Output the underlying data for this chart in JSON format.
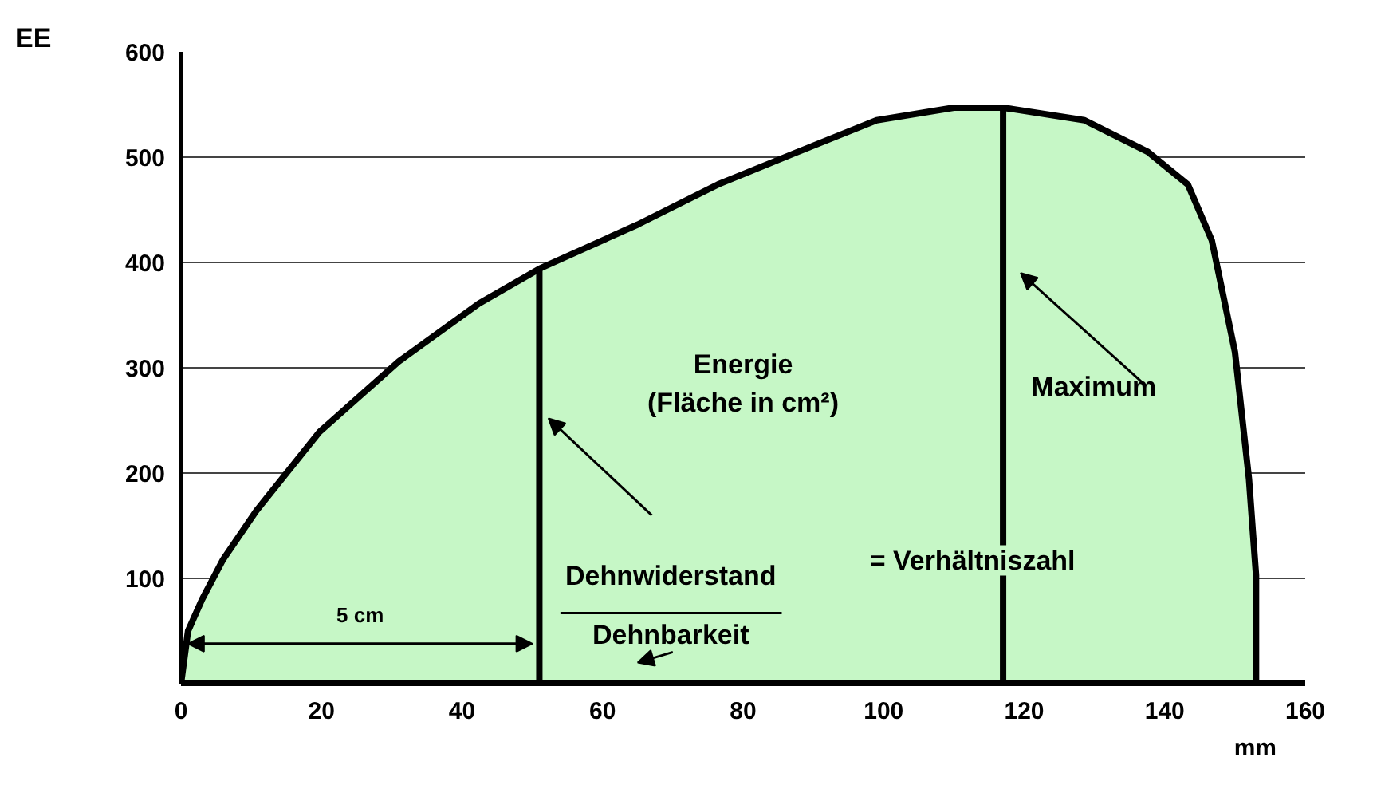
{
  "chart_data": {
    "type": "area",
    "xlabel": "mm",
    "ylabel": "EE",
    "xlim": [
      0,
      160
    ],
    "ylim": [
      0,
      600
    ],
    "xticks": [
      0,
      20,
      40,
      60,
      80,
      100,
      120,
      140,
      160
    ],
    "yticks": [
      {
        "value": 0,
        "label": null
      },
      100,
      200,
      300,
      400,
      500,
      600
    ],
    "grid": "y",
    "series": [
      {
        "color": "#c6f7c6",
        "x": [
          0,
          1,
          3,
          6,
          10.7,
          19.7,
          31,
          42.4,
          51,
          65,
          76.4,
          87.8,
          99,
          110,
          117,
          128.6,
          137.6,
          143.3,
          146.7,
          150,
          152,
          153,
          153
        ],
        "values": [
          0,
          50,
          80,
          118,
          164,
          239,
          306,
          361,
          394,
          436,
          474,
          505,
          535,
          547,
          547,
          535,
          505,
          474,
          421,
          315,
          194,
          103,
          0
        ]
      },
      {
        "type": "line",
        "color": "#000000",
        "x": [
          51,
          51
        ],
        "values": [
          0,
          394
        ]
      },
      {
        "type": "line",
        "color": "#000000",
        "x": [
          117,
          117
        ],
        "values": [
          0,
          547
        ]
      }
    ],
    "annotations": [
      "Energie\n(Fläche in cm²)",
      "Maximum",
      "Dehnwiderstand",
      "Dehnbarkeit",
      "= Verhältniszahl",
      {
        "text": "5 cm",
        "x": 51,
        "y": 38
      }
    ]
  }
}
